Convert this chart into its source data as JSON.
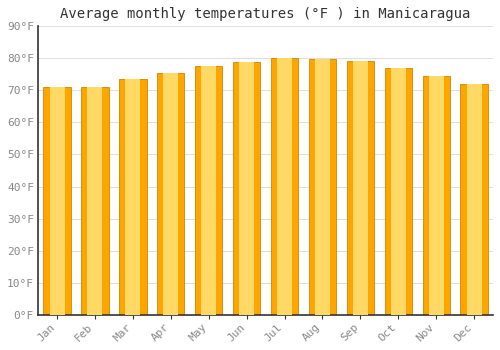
{
  "title": "Average monthly temperatures (°F ) in Manicaragua",
  "months": [
    "Jan",
    "Feb",
    "Mar",
    "Apr",
    "May",
    "Jun",
    "Jul",
    "Aug",
    "Sep",
    "Oct",
    "Nov",
    "Dec"
  ],
  "values": [
    70.9,
    71.1,
    73.5,
    75.5,
    77.5,
    79.0,
    80.1,
    79.9,
    79.1,
    77.0,
    74.5,
    72.0
  ],
  "bar_color_center": "#FFD966",
  "bar_color_edge": "#FFA500",
  "background_color": "#FFFFFF",
  "grid_color": "#DDDDDD",
  "ylim": [
    0,
    90
  ],
  "yticks": [
    0,
    10,
    20,
    30,
    40,
    50,
    60,
    70,
    80,
    90
  ],
  "title_fontsize": 10,
  "tick_fontsize": 8,
  "font_family": "monospace"
}
